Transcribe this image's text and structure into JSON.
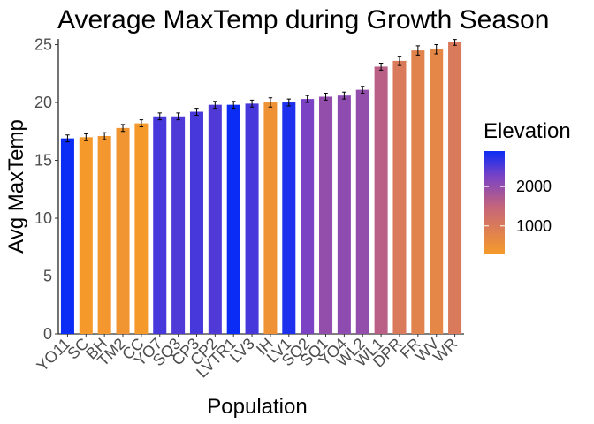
{
  "chart_data": {
    "type": "bar",
    "title": "Average MaxTemp during Growth Season",
    "xlabel": "Population",
    "ylabel": "Avg MaxTemp",
    "ylim": [
      0,
      25.5
    ],
    "yticks": [
      0,
      5,
      10,
      15,
      20,
      25
    ],
    "grid": false,
    "error_bars": true,
    "legend": {
      "title": "Elevation",
      "placement": "right",
      "scale": "continuous gradient",
      "colors": {
        "low": "#f5992b",
        "high": "#0b2cf5"
      },
      "ticks": [
        1000,
        2000
      ]
    },
    "categories": [
      "YO11",
      "SC",
      "BH",
      "TM2",
      "CC",
      "YO7",
      "SQ3",
      "CP3",
      "CP2",
      "LVTR1",
      "LV3",
      "IH",
      "LV1",
      "SQ2",
      "SQ1",
      "YO4",
      "WL2",
      "WL1",
      "DPR",
      "FR",
      "WV",
      "WR"
    ],
    "values": [
      16.9,
      17.0,
      17.1,
      17.8,
      18.2,
      18.8,
      18.8,
      19.2,
      19.8,
      19.8,
      19.9,
      20.0,
      20.0,
      20.3,
      20.5,
      20.6,
      21.1,
      23.1,
      23.6,
      24.5,
      24.6,
      25.2
    ],
    "errors": [
      0.3,
      0.3,
      0.3,
      0.3,
      0.3,
      0.3,
      0.3,
      0.3,
      0.3,
      0.3,
      0.3,
      0.4,
      0.3,
      0.3,
      0.3,
      0.3,
      0.3,
      0.3,
      0.4,
      0.4,
      0.4,
      0.25
    ],
    "elevation": [
      2900,
      300,
      350,
      400,
      300,
      2550,
      2500,
      2550,
      2500,
      2900,
      2550,
      450,
      2800,
      2250,
      2000,
      2050,
      2000,
      1600,
      1000,
      800,
      700,
      1000
    ]
  }
}
